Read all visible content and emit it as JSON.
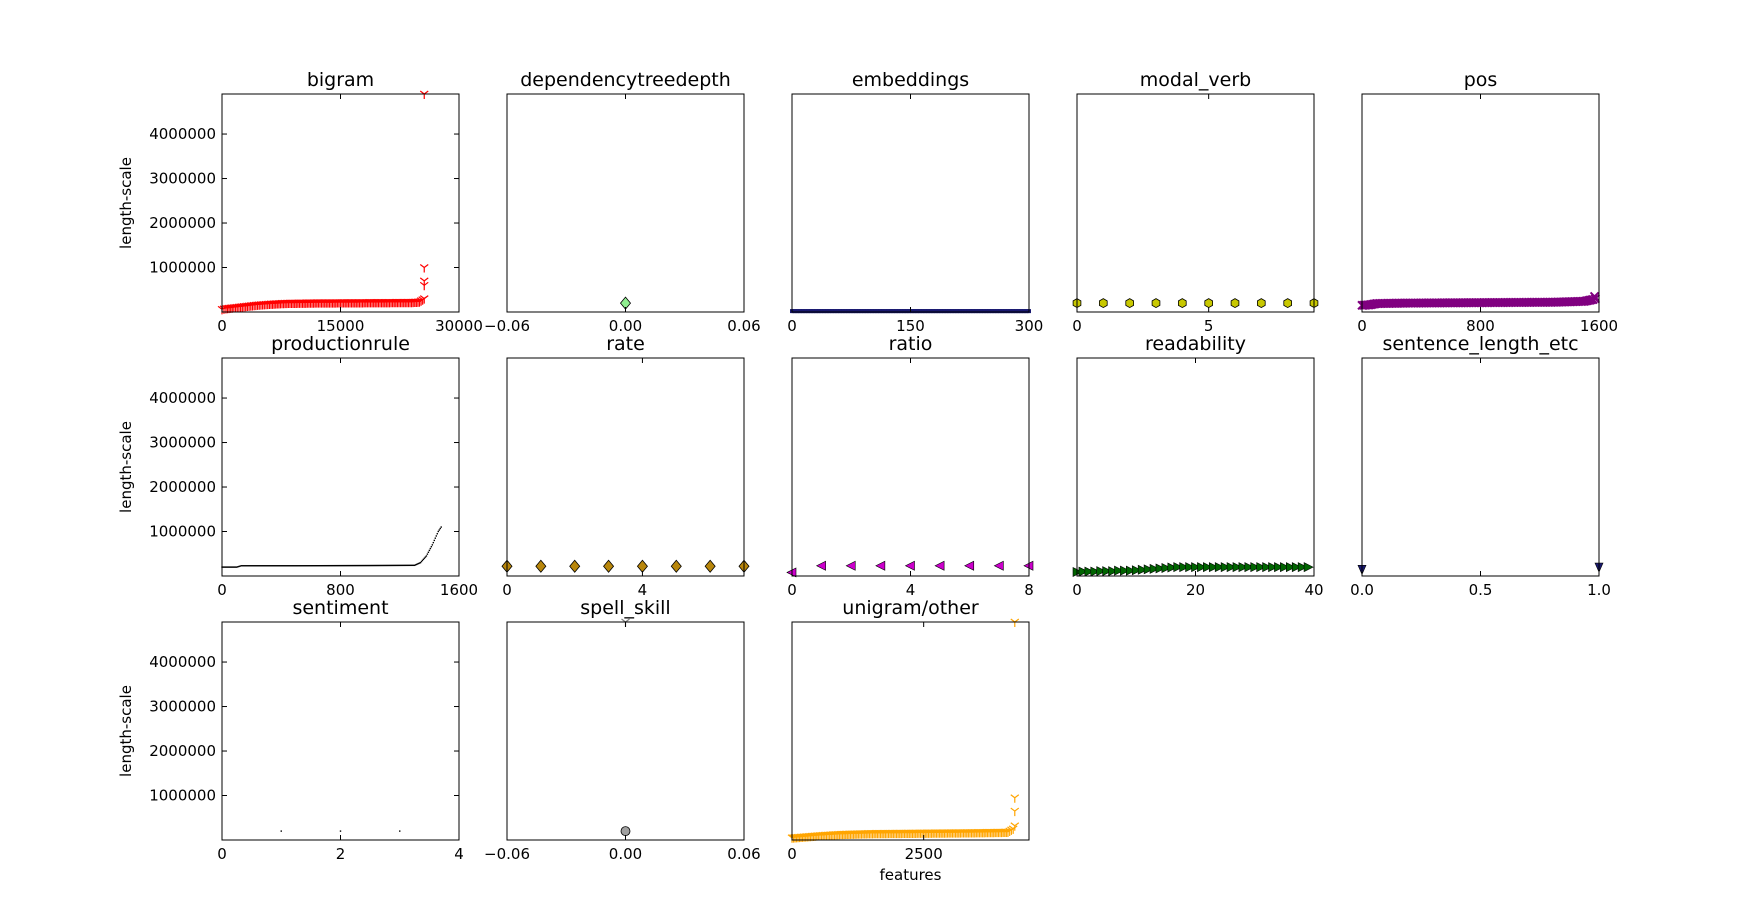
{
  "chart_data": [
    {
      "type": "scatter",
      "title": "bigram",
      "xlabel": "",
      "ylabel": "length-scale",
      "xlim": [
        0,
        30000
      ],
      "ylim": [
        0,
        4900000
      ],
      "xticks": [
        "0",
        "15000",
        "30000"
      ],
      "yticks": [
        "1000000",
        "2000000",
        "3000000",
        "4000000"
      ],
      "series": [
        {
          "marker": "tri_down",
          "color": "#ff0000",
          "curve": [
            [
              0,
              60000
            ],
            [
              500,
              80000
            ],
            [
              1500,
              100000
            ],
            [
              3000,
              130000
            ],
            [
              4500,
              160000
            ],
            [
              6000,
              180000
            ],
            [
              8000,
              200000
            ],
            [
              12000,
              210000
            ],
            [
              18000,
              215000
            ],
            [
              24000,
              220000
            ],
            [
              25000,
              230000
            ],
            [
              25600,
              300000
            ]
          ],
          "outliers": [
            [
              25600,
              600000
            ],
            [
              25600,
              700000
            ],
            [
              25600,
              1000000
            ],
            [
              25600,
              4900000
            ]
          ]
        }
      ]
    },
    {
      "type": "scatter",
      "title": "dependencytreedepth",
      "xlabel": "",
      "ylabel": "",
      "xlim": [
        -0.06,
        0.06
      ],
      "ylim": [
        0,
        4900000
      ],
      "xticks": [
        "−0.06",
        "0.00",
        "0.06"
      ],
      "yticks": [],
      "series": [
        {
          "marker": "diamond",
          "color": "#90ee90",
          "points": [
            [
              0,
              200000
            ]
          ]
        }
      ]
    },
    {
      "type": "scatter",
      "title": "embeddings",
      "xlabel": "",
      "ylabel": "",
      "xlim": [
        0,
        300
      ],
      "ylim": [
        0,
        4900000
      ],
      "xticks": [
        "0",
        "150",
        "300"
      ],
      "yticks": [],
      "series": [
        {
          "marker": "star",
          "color": "#191970",
          "curve": [
            [
              0,
              20000
            ],
            [
              300,
              20000
            ]
          ]
        }
      ]
    },
    {
      "type": "scatter",
      "title": "modal_verb",
      "xlabel": "",
      "ylabel": "",
      "xlim": [
        0,
        9
      ],
      "ylim": [
        0,
        4900000
      ],
      "xticks": [
        "0",
        "5"
      ],
      "yticks": [],
      "series": [
        {
          "marker": "hexagon",
          "color": "#c8c800",
          "points": [
            [
              0,
              200000
            ],
            [
              1,
              200000
            ],
            [
              2,
              200000
            ],
            [
              3,
              200000
            ],
            [
              4,
              200000
            ],
            [
              5,
              200000
            ],
            [
              6,
              200000
            ],
            [
              7,
              200000
            ],
            [
              8,
              200000
            ],
            [
              9,
              200000
            ]
          ]
        }
      ]
    },
    {
      "type": "scatter",
      "title": "pos",
      "xlabel": "",
      "ylabel": "",
      "xlim": [
        0,
        1600
      ],
      "ylim": [
        0,
        4900000
      ],
      "xticks": [
        "0",
        "800",
        "1600"
      ],
      "yticks": [],
      "series": [
        {
          "marker": "x",
          "color": "#800080",
          "curve": [
            [
              0,
              150000
            ],
            [
              50,
              160000
            ],
            [
              100,
              190000
            ],
            [
              300,
              200000
            ],
            [
              800,
              210000
            ],
            [
              1300,
              220000
            ],
            [
              1500,
              240000
            ],
            [
              1560,
              280000
            ]
          ],
          "outliers": [
            [
              1570,
              350000
            ],
            [
              1575,
              300000
            ]
          ]
        }
      ]
    },
    {
      "type": "scatter",
      "title": "productionrule",
      "xlabel": "",
      "ylabel": "length-scale",
      "xlim": [
        0,
        1600
      ],
      "ylim": [
        0,
        4900000
      ],
      "xticks": [
        "0",
        "800",
        "1600"
      ],
      "yticks": [
        "1000000",
        "2000000",
        "3000000",
        "4000000"
      ],
      "series": [
        {
          "marker": "pixel",
          "color": "#000000",
          "curve": [
            [
              0,
              200000
            ],
            [
              100,
              200000
            ],
            [
              130,
              230000
            ],
            [
              500,
              230000
            ],
            [
              1000,
              235000
            ],
            [
              1300,
              240000
            ],
            [
              1340,
              300000
            ],
            [
              1380,
              450000
            ],
            [
              1420,
              700000
            ],
            [
              1460,
              1000000
            ],
            [
              1480,
              1100000
            ]
          ]
        }
      ]
    },
    {
      "type": "scatter",
      "title": "rate",
      "xlabel": "",
      "ylabel": "",
      "xlim": [
        0,
        7
      ],
      "ylim": [
        0,
        4900000
      ],
      "xticks": [
        "0",
        "4"
      ],
      "yticks": [],
      "series": [
        {
          "marker": "diamond",
          "color": "#b8860b",
          "points": [
            [
              0,
              220000
            ],
            [
              1,
              220000
            ],
            [
              2,
              220000
            ],
            [
              3,
              220000
            ],
            [
              4,
              220000
            ],
            [
              5,
              220000
            ],
            [
              6,
              220000
            ],
            [
              7,
              220000
            ]
          ]
        }
      ]
    },
    {
      "type": "scatter",
      "title": "ratio",
      "xlabel": "",
      "ylabel": "",
      "xlim": [
        0,
        8
      ],
      "ylim": [
        0,
        4900000
      ],
      "xticks": [
        "0",
        "4",
        "8"
      ],
      "yticks": [],
      "series": [
        {
          "marker": "triangle_left",
          "color": "#cc00cc",
          "points": [
            [
              0,
              80000
            ],
            [
              1,
              230000
            ],
            [
              2,
              230000
            ],
            [
              3,
              230000
            ],
            [
              4,
              230000
            ],
            [
              5,
              230000
            ],
            [
              6,
              230000
            ],
            [
              7,
              230000
            ],
            [
              8,
              230000
            ]
          ]
        }
      ]
    },
    {
      "type": "scatter",
      "title": "readability",
      "xlabel": "",
      "ylabel": "",
      "xlim": [
        0,
        40
      ],
      "ylim": [
        0,
        4900000
      ],
      "xticks": [
        "0",
        "20",
        "40"
      ],
      "yticks": [],
      "series": [
        {
          "marker": "triangle_right",
          "color": "#006400",
          "points": [
            [
              0,
              90000
            ],
            [
              1,
              100000
            ],
            [
              2,
              100000
            ],
            [
              3,
              100000
            ],
            [
              4,
              110000
            ],
            [
              5,
              110000
            ],
            [
              6,
              110000
            ],
            [
              7,
              120000
            ],
            [
              8,
              120000
            ],
            [
              9,
              120000
            ],
            [
              10,
              130000
            ],
            [
              11,
              140000
            ],
            [
              12,
              150000
            ],
            [
              13,
              160000
            ],
            [
              14,
              170000
            ],
            [
              15,
              180000
            ],
            [
              16,
              190000
            ],
            [
              17,
              200000
            ],
            [
              18,
              200000
            ],
            [
              19,
              200000
            ],
            [
              20,
              200000
            ],
            [
              21,
              200000
            ],
            [
              22,
              200000
            ],
            [
              23,
              200000
            ],
            [
              24,
              200000
            ],
            [
              25,
              200000
            ],
            [
              26,
              200000
            ],
            [
              27,
              200000
            ],
            [
              28,
              200000
            ],
            [
              29,
              200000
            ],
            [
              30,
              200000
            ],
            [
              31,
              200000
            ],
            [
              32,
              200000
            ],
            [
              33,
              200000
            ],
            [
              34,
              200000
            ],
            [
              35,
              200000
            ],
            [
              36,
              200000
            ],
            [
              37,
              200000
            ],
            [
              38,
              200000
            ],
            [
              39,
              200000
            ]
          ]
        }
      ]
    },
    {
      "type": "scatter",
      "title": "sentence_length_etc",
      "xlabel": "",
      "ylabel": "",
      "xlim": [
        0,
        1
      ],
      "ylim": [
        0,
        4900000
      ],
      "xticks": [
        "0.0",
        "0.5",
        "1.0"
      ],
      "yticks": [],
      "series": [
        {
          "marker": "triangle_down",
          "color": "#191970",
          "points": [
            [
              0,
              150000
            ],
            [
              1,
              200000
            ]
          ]
        }
      ]
    },
    {
      "type": "scatter",
      "title": "sentiment",
      "xlabel": "",
      "ylabel": "length-scale",
      "xlim": [
        0,
        4
      ],
      "ylim": [
        0,
        4900000
      ],
      "xticks": [
        "0",
        "2",
        "4"
      ],
      "yticks": [
        "1000000",
        "2000000",
        "3000000",
        "4000000"
      ],
      "series": [
        {
          "marker": "pixel",
          "color": "#000000",
          "points": [
            [
              1,
              200000
            ],
            [
              2,
              200000
            ],
            [
              3,
              200000
            ]
          ]
        }
      ]
    },
    {
      "type": "scatter",
      "title": "spell_skill",
      "xlabel": "",
      "ylabel": "",
      "xlim": [
        -0.06,
        0.06
      ],
      "ylim": [
        0,
        4900000
      ],
      "xticks": [
        "−0.06",
        "0.00",
        "0.06"
      ],
      "yticks": [],
      "series": [
        {
          "marker": "circle",
          "color": "#a0a0a0",
          "points": [
            [
              0,
              200000
            ]
          ]
        },
        {
          "marker": "tri_down",
          "color": "#808080",
          "points": [
            [
              0,
              4900000
            ]
          ]
        }
      ]
    },
    {
      "type": "scatter",
      "title": "unigram/other",
      "xlabel": "features",
      "ylabel": "",
      "xlim": [
        0,
        4500
      ],
      "ylim": [
        0,
        4900000
      ],
      "xticks": [
        "0",
        "2500"
      ],
      "yticks": [],
      "series": [
        {
          "marker": "tri_down",
          "color": "#ffa500",
          "curve": [
            [
              0,
              50000
            ],
            [
              200,
              70000
            ],
            [
              500,
              100000
            ],
            [
              900,
              130000
            ],
            [
              1500,
              150000
            ],
            [
              2500,
              160000
            ],
            [
              3500,
              170000
            ],
            [
              4100,
              180000
            ],
            [
              4200,
              250000
            ],
            [
              4230,
              320000
            ]
          ],
          "outliers": [
            [
              4230,
              650000
            ],
            [
              4230,
              950000
            ],
            [
              4230,
              4900000
            ]
          ]
        }
      ]
    }
  ]
}
